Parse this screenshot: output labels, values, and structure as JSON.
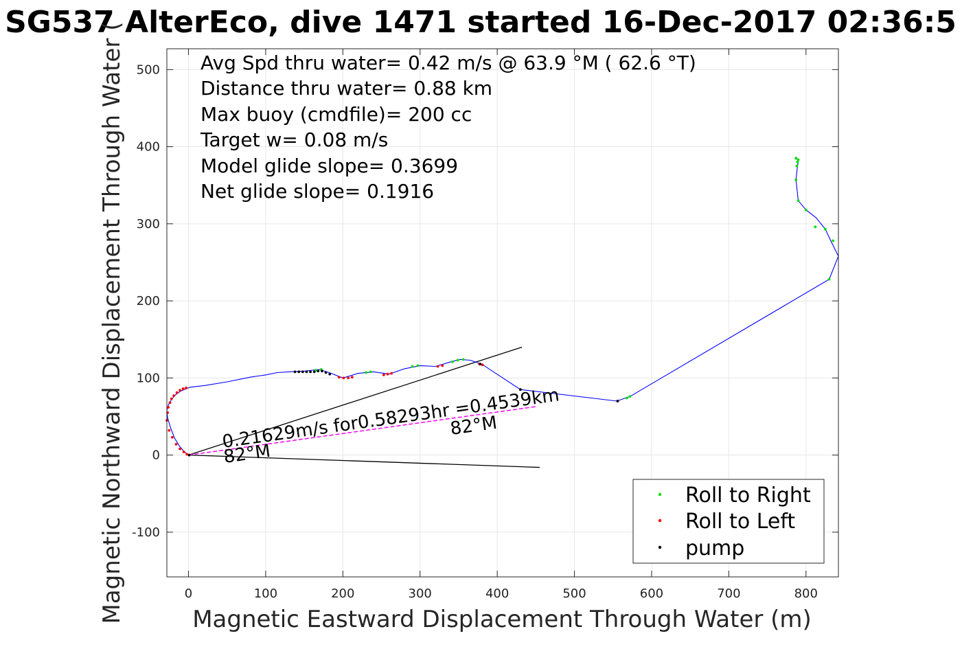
{
  "chart_data": {
    "type": "line",
    "title": "SG537 AlterEco, dive 1471 started 16-Dec-2017 02:36:5",
    "xlabel": "Magnetic Eastward Displacement Through Water (m)",
    "ylabel": "Magnetic Northward Displacement Through Water (",
    "xlim": [
      -28,
      842
    ],
    "ylim": [
      -158,
      527
    ],
    "xticks": [
      0,
      100,
      200,
      300,
      400,
      500,
      600,
      700,
      800
    ],
    "yticks": [
      -100,
      0,
      100,
      200,
      300,
      400,
      500
    ],
    "xtick_labels": [
      "0",
      "100",
      "200",
      "300",
      "400",
      "500",
      "600",
      "700",
      "800"
    ],
    "ytick_labels": [
      "-100",
      "0",
      "100",
      "200",
      "300",
      "400",
      "500"
    ],
    "grid": true,
    "annotations": [
      "Avg Spd thru water=  0.42 m/s @  63.9 °M ( 62.6 °T)",
      "Distance thru water=  0.88 km",
      "Max buoy (cmdfile)= 200 cc",
      "Target w= 0.08 m/s",
      "Model glide slope= 0.3699",
      "Net glide slope= 0.1916"
    ],
    "track_labels": {
      "current": "0.21629m/s for0.58293hr =0.4539km",
      "heading_start": "82°M",
      "heading_end": "82°M"
    },
    "legend": {
      "position": "bottom-right",
      "entries": [
        {
          "label": "Roll to Right",
          "color": "#00dd00"
        },
        {
          "label": "Roll to Left",
          "color": "#ff0000"
        },
        {
          "label": "pump",
          "color": "#000000"
        }
      ]
    },
    "track": {
      "color": "#0000ff",
      "x": [
        0,
        -6,
        -12,
        -18,
        -23,
        -27,
        -28,
        -26,
        -22,
        -17,
        -10,
        -3,
        2,
        20,
        50,
        80,
        100,
        115,
        130,
        150,
        170,
        185,
        200,
        220,
        240,
        260,
        280,
        300,
        320,
        340,
        352,
        365,
        380,
        430,
        555,
        572,
        830,
        842,
        832,
        825,
        813,
        800,
        790,
        787,
        789,
        790,
        788,
        787
      ],
      "y": [
        0,
        5,
        12,
        22,
        35,
        48,
        58,
        65,
        72,
        78,
        83,
        86,
        88,
        90,
        95,
        101,
        104,
        107,
        108,
        109,
        111,
        106,
        100,
        106,
        108,
        105,
        112,
        116,
        115,
        121,
        124,
        123,
        118,
        85,
        70,
        76,
        228,
        258,
        278,
        293,
        308,
        318,
        330,
        357,
        375,
        380,
        385,
        387
      ]
    },
    "heading_lines": {
      "color": "#000000",
      "segments": [
        {
          "x": [
            0,
            432
          ],
          "y": [
            0,
            140
          ]
        },
        {
          "x": [
            0,
            455
          ],
          "y": [
            0,
            -16
          ]
        }
      ]
    },
    "current_line": {
      "color": "#ff00ff",
      "x": [
        0,
        451
      ],
      "y": [
        0,
        63
      ]
    },
    "roll_right": {
      "color": "#00dd00",
      "x": [
        165,
        172,
        230,
        236,
        290,
        297,
        342,
        349,
        356,
        572,
        568,
        830,
        835,
        825,
        812,
        800,
        790,
        787,
        788,
        789,
        790,
        787
      ],
      "y": [
        110,
        111,
        107,
        108,
        115,
        116,
        121,
        123,
        124,
        76,
        74,
        228,
        278,
        293,
        296,
        318,
        330,
        357,
        375,
        380,
        383,
        385
      ]
    },
    "roll_left": {
      "color": "#ff0000",
      "x": [
        -27,
        -26,
        -24,
        -22,
        -19,
        -15,
        -11,
        -7,
        -3,
        1,
        -28,
        -25,
        -21,
        -16,
        -11,
        -6,
        -2,
        195,
        201,
        207,
        212,
        253,
        258,
        263,
        323,
        329,
        377,
        381,
        556
      ],
      "y": [
        55,
        62,
        68,
        73,
        77,
        81,
        84,
        86,
        87,
        0,
        45,
        32,
        23,
        14,
        8,
        4,
        1,
        101,
        100,
        100,
        101,
        104,
        105,
        106,
        115,
        116,
        118,
        117,
        70
      ]
    },
    "pump": {
      "color": "#000000",
      "x": [
        138,
        143,
        148,
        153,
        158,
        163,
        168,
        173,
        178,
        183,
        1,
        430,
        556,
        378
      ],
      "y": [
        108,
        108,
        108,
        108,
        108,
        108,
        109,
        109,
        107,
        105,
        0,
        85,
        70,
        118
      ]
    }
  }
}
